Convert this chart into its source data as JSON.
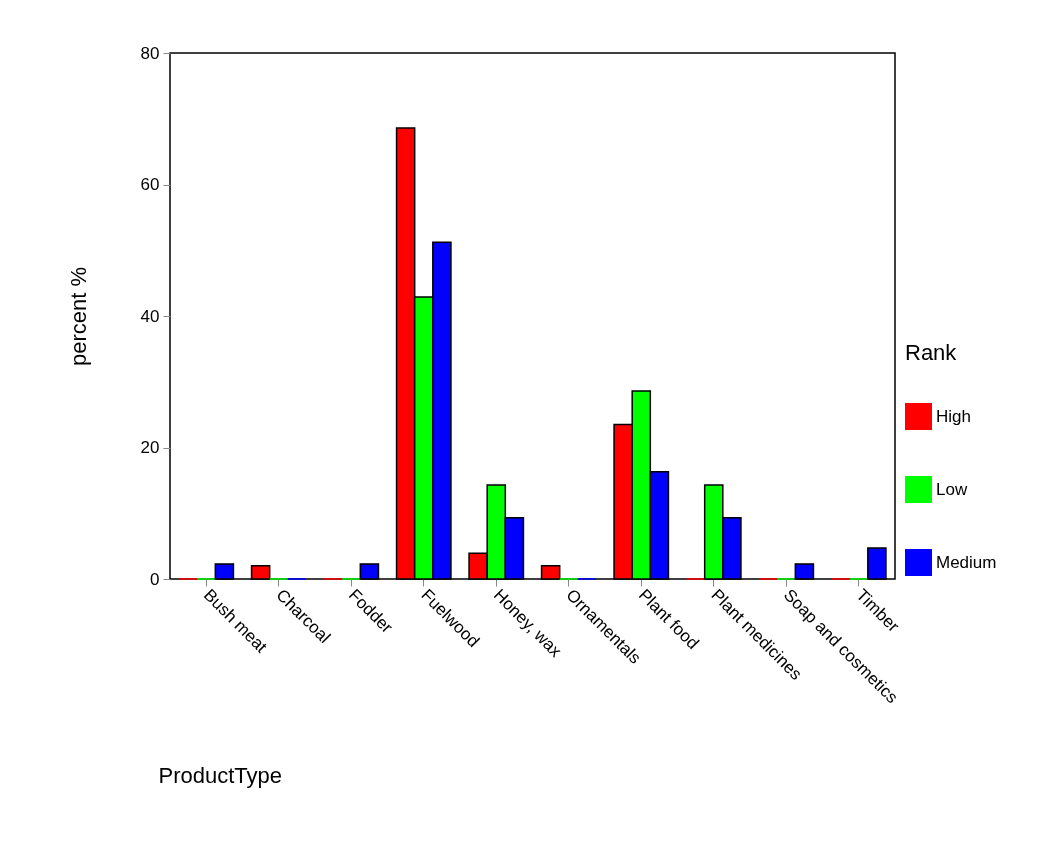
{
  "chart_data": {
    "type": "bar",
    "xlabel": "ProductType",
    "ylabel": "percent %",
    "legend_title": "Rank",
    "legend": "right",
    "categories": [
      "Bush meat",
      "Charcoal",
      "Fodder",
      "Fuelwood",
      "Honey, wax",
      "Ornamentals",
      "Plant food",
      "Plant medicines",
      "Soap and cosmetics",
      "Timber"
    ],
    "series": [
      {
        "name": "High",
        "color": "#ff0000",
        "values": [
          0,
          2.0,
          0,
          68.6,
          3.9,
          2.0,
          23.5,
          0,
          0,
          0
        ]
      },
      {
        "name": "Low",
        "color": "#00ff00",
        "values": [
          0,
          0,
          0,
          42.9,
          14.3,
          0,
          28.6,
          14.3,
          0,
          0
        ]
      },
      {
        "name": "Medium",
        "color": "#0000ff",
        "values": [
          2.3,
          0,
          2.3,
          51.2,
          9.3,
          0,
          16.3,
          9.3,
          2.3,
          4.7
        ]
      }
    ],
    "ylim": [
      0,
      80
    ],
    "yticks": [
      0,
      20,
      40,
      60,
      80
    ],
    "grid": false
  }
}
